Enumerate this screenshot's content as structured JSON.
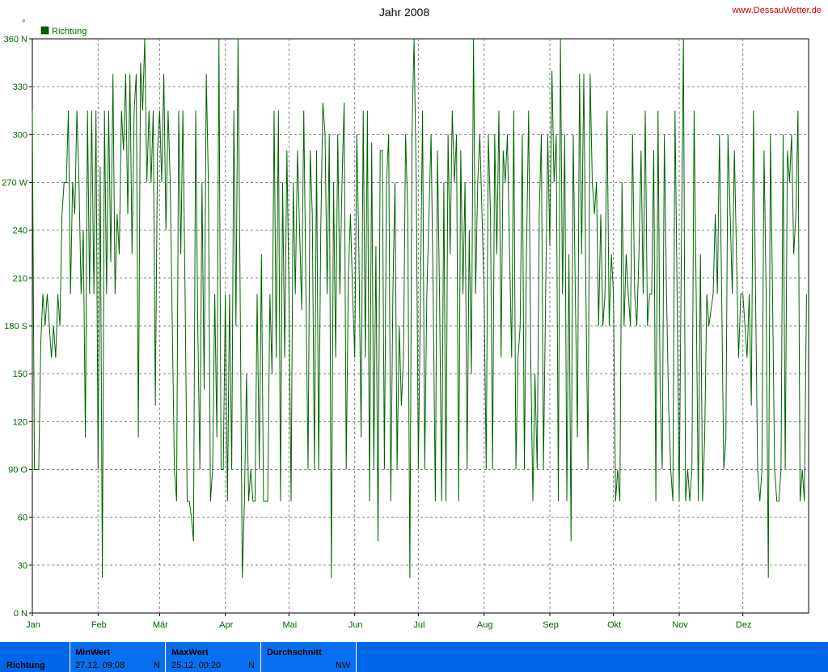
{
  "title": "Jahr 2008",
  "site": "www.DessauWetter.de",
  "unit_symbol": "°",
  "colors": {
    "series": "#006400",
    "grid": "#808080",
    "bar": "#0870f0",
    "site": "#d00000"
  },
  "chart_data": {
    "type": "line",
    "title": "Jahr 2008",
    "series": [
      {
        "name": "Richtung"
      }
    ],
    "ylim": [
      0,
      360
    ],
    "y_ticks": [
      {
        "v": 0,
        "label": "0   N"
      },
      {
        "v": 30,
        "label": "30"
      },
      {
        "v": 60,
        "label": "60"
      },
      {
        "v": 90,
        "label": "90   O"
      },
      {
        "v": 120,
        "label": "120"
      },
      {
        "v": 150,
        "label": "150"
      },
      {
        "v": 180,
        "label": "180 S"
      },
      {
        "v": 210,
        "label": "210"
      },
      {
        "v": 240,
        "label": "240"
      },
      {
        "v": 270,
        "label": "270 W"
      },
      {
        "v": 300,
        "label": "300"
      },
      {
        "v": 330,
        "label": "330"
      },
      {
        "v": 360,
        "label": "360 N"
      }
    ],
    "months": [
      "Jan",
      "Feb",
      "Mär",
      "Apr",
      "Mai",
      "Jun",
      "Jul",
      "Aug",
      "Sep",
      "Okt",
      "Nov",
      "Dez"
    ],
    "month_start_day": [
      0,
      31,
      60,
      91,
      121,
      152,
      182,
      213,
      244,
      274,
      305,
      335
    ],
    "days_in_year": 366,
    "grid": true,
    "legend": "top-left",
    "points": [
      [
        0,
        315
      ],
      [
        0.5,
        200
      ],
      [
        1,
        90
      ],
      [
        2,
        90
      ],
      [
        3,
        90
      ],
      [
        4,
        170
      ],
      [
        5,
        200
      ],
      [
        6,
        180
      ],
      [
        7,
        200
      ],
      [
        8,
        180
      ],
      [
        9,
        160
      ],
      [
        10,
        180
      ],
      [
        11,
        160
      ],
      [
        12,
        200
      ],
      [
        13,
        180
      ],
      [
        14,
        250
      ],
      [
        15,
        270
      ],
      [
        16,
        270
      ],
      [
        17,
        315
      ],
      [
        18,
        200
      ],
      [
        19,
        270
      ],
      [
        20,
        250
      ],
      [
        21,
        315
      ],
      [
        22,
        270
      ],
      [
        23,
        200
      ],
      [
        24,
        240
      ],
      [
        25,
        110
      ],
      [
        26,
        315
      ],
      [
        27,
        200
      ],
      [
        28,
        315
      ],
      [
        29,
        200
      ],
      [
        30,
        315
      ],
      [
        31,
        90
      ],
      [
        32,
        280
      ],
      [
        33,
        22
      ],
      [
        34,
        315
      ],
      [
        35,
        200
      ],
      [
        36,
        315
      ],
      [
        37,
        220
      ],
      [
        38,
        338
      ],
      [
        39,
        200
      ],
      [
        40,
        250
      ],
      [
        41,
        225
      ],
      [
        42,
        315
      ],
      [
        43,
        290
      ],
      [
        44,
        338
      ],
      [
        45,
        250
      ],
      [
        46,
        338
      ],
      [
        47,
        225
      ],
      [
        48,
        315
      ],
      [
        49,
        338
      ],
      [
        50,
        110
      ],
      [
        51,
        345
      ],
      [
        52,
        315
      ],
      [
        53,
        360
      ],
      [
        54,
        270
      ],
      [
        55,
        315
      ],
      [
        56,
        270
      ],
      [
        57,
        315
      ],
      [
        58,
        130
      ],
      [
        59,
        290
      ],
      [
        60,
        315
      ],
      [
        61,
        270
      ],
      [
        62,
        338
      ],
      [
        63,
        240
      ],
      [
        64,
        315
      ],
      [
        65,
        270
      ],
      [
        66,
        180
      ],
      [
        67,
        90
      ],
      [
        68,
        70
      ],
      [
        69,
        315
      ],
      [
        70,
        225
      ],
      [
        71,
        315
      ],
      [
        72,
        200
      ],
      [
        73,
        70
      ],
      [
        74,
        70
      ],
      [
        75,
        60
      ],
      [
        76,
        45
      ],
      [
        77,
        315
      ],
      [
        78,
        180
      ],
      [
        79,
        90
      ],
      [
        80,
        270
      ],
      [
        81,
        140
      ],
      [
        82,
        338
      ],
      [
        83,
        270
      ],
      [
        84,
        70
      ],
      [
        85,
        90
      ],
      [
        86,
        200
      ],
      [
        87,
        110
      ],
      [
        88,
        360
      ],
      [
        89,
        90
      ],
      [
        90,
        90
      ],
      [
        91,
        200
      ],
      [
        92,
        70
      ],
      [
        93,
        200
      ],
      [
        94,
        90
      ],
      [
        95,
        315
      ],
      [
        96,
        180
      ],
      [
        97,
        360
      ],
      [
        98,
        200
      ],
      [
        99,
        22
      ],
      [
        100,
        70
      ],
      [
        101,
        150
      ],
      [
        102,
        70
      ],
      [
        103,
        90
      ],
      [
        104,
        70
      ],
      [
        105,
        70
      ],
      [
        106,
        200
      ],
      [
        107,
        90
      ],
      [
        108,
        225
      ],
      [
        109,
        70
      ],
      [
        110,
        70
      ],
      [
        111,
        70
      ],
      [
        112,
        200
      ],
      [
        113,
        150
      ],
      [
        114,
        315
      ],
      [
        115,
        160
      ],
      [
        116,
        315
      ],
      [
        117,
        70
      ],
      [
        118,
        270
      ],
      [
        119,
        160
      ],
      [
        120,
        290
      ],
      [
        121,
        200
      ],
      [
        122,
        70
      ],
      [
        123,
        270
      ],
      [
        124,
        200
      ],
      [
        125,
        290
      ],
      [
        126,
        240
      ],
      [
        127,
        190
      ],
      [
        128,
        315
      ],
      [
        129,
        200
      ],
      [
        130,
        90
      ],
      [
        131,
        290
      ],
      [
        132,
        250
      ],
      [
        133,
        90
      ],
      [
        134,
        290
      ],
      [
        135,
        90
      ],
      [
        136,
        240
      ],
      [
        137,
        320
      ],
      [
        138,
        300
      ],
      [
        139,
        200
      ],
      [
        140,
        300
      ],
      [
        141,
        22
      ],
      [
        142,
        270
      ],
      [
        143,
        160
      ],
      [
        144,
        300
      ],
      [
        145,
        200
      ],
      [
        146,
        270
      ],
      [
        147,
        320
      ],
      [
        148,
        90
      ],
      [
        149,
        210
      ],
      [
        150,
        250
      ],
      [
        151,
        200
      ],
      [
        152,
        160
      ],
      [
        153,
        300
      ],
      [
        154,
        225
      ],
      [
        155,
        110
      ],
      [
        156,
        315
      ],
      [
        157,
        160
      ],
      [
        158,
        315
      ],
      [
        159,
        70
      ],
      [
        160,
        295
      ],
      [
        161,
        90
      ],
      [
        162,
        230
      ],
      [
        163,
        45
      ],
      [
        164,
        290
      ],
      [
        165,
        290
      ],
      [
        166,
        90
      ],
      [
        167,
        270
      ],
      [
        168,
        300
      ],
      [
        169,
        70
      ],
      [
        170,
        200
      ],
      [
        171,
        270
      ],
      [
        172,
        90
      ],
      [
        173,
        180
      ],
      [
        174,
        130
      ],
      [
        175,
        160
      ],
      [
        176,
        300
      ],
      [
        177,
        250
      ],
      [
        178,
        22
      ],
      [
        179,
        300
      ],
      [
        180,
        360
      ],
      [
        181,
        270
      ],
      [
        182,
        90
      ],
      [
        183,
        200
      ],
      [
        184,
        315
      ],
      [
        185,
        90
      ],
      [
        186,
        200
      ],
      [
        187,
        250
      ],
      [
        188,
        300
      ],
      [
        189,
        200
      ],
      [
        190,
        70
      ],
      [
        191,
        290
      ],
      [
        192,
        200
      ],
      [
        193,
        70
      ],
      [
        194,
        270
      ],
      [
        195,
        70
      ],
      [
        196,
        300
      ],
      [
        197,
        225
      ],
      [
        198,
        315
      ],
      [
        199,
        270
      ],
      [
        200,
        300
      ],
      [
        201,
        70
      ],
      [
        202,
        290
      ],
      [
        203,
        200
      ],
      [
        204,
        270
      ],
      [
        205,
        90
      ],
      [
        206,
        240
      ],
      [
        207,
        150
      ],
      [
        208,
        360
      ],
      [
        209,
        200
      ],
      [
        210,
        270
      ],
      [
        211,
        300
      ],
      [
        212,
        250
      ],
      [
        213,
        200
      ],
      [
        214,
        90
      ],
      [
        215,
        300
      ],
      [
        216,
        250
      ],
      [
        217,
        90
      ],
      [
        218,
        300
      ],
      [
        219,
        225
      ],
      [
        220,
        315
      ],
      [
        221,
        160
      ],
      [
        222,
        290
      ],
      [
        223,
        270
      ],
      [
        224,
        300
      ],
      [
        225,
        225
      ],
      [
        226,
        160
      ],
      [
        227,
        315
      ],
      [
        228,
        90
      ],
      [
        229,
        160
      ],
      [
        230,
        180
      ],
      [
        231,
        300
      ],
      [
        232,
        90
      ],
      [
        233,
        225
      ],
      [
        234,
        315
      ],
      [
        235,
        160
      ],
      [
        236,
        70
      ],
      [
        237,
        150
      ],
      [
        238,
        90
      ],
      [
        239,
        250
      ],
      [
        240,
        300
      ],
      [
        241,
        90
      ],
      [
        242,
        200
      ],
      [
        243,
        300
      ],
      [
        244,
        230
      ],
      [
        245,
        340
      ],
      [
        246,
        270
      ],
      [
        247,
        300
      ],
      [
        248,
        70
      ],
      [
        249,
        360
      ],
      [
        250,
        200
      ],
      [
        251,
        300
      ],
      [
        252,
        70
      ],
      [
        253,
        225
      ],
      [
        254,
        45
      ],
      [
        255,
        300
      ],
      [
        256,
        200
      ],
      [
        257,
        110
      ],
      [
        258,
        338
      ],
      [
        259,
        225
      ],
      [
        260,
        338
      ],
      [
        261,
        200
      ],
      [
        262,
        90
      ],
      [
        263,
        338
      ],
      [
        264,
        270
      ],
      [
        265,
        250
      ],
      [
        266,
        270
      ],
      [
        267,
        180
      ],
      [
        268,
        250
      ],
      [
        269,
        180
      ],
      [
        270,
        200
      ],
      [
        271,
        315
      ],
      [
        272,
        180
      ],
      [
        273,
        225
      ],
      [
        274,
        200
      ],
      [
        275,
        70
      ],
      [
        276,
        90
      ],
      [
        277,
        70
      ],
      [
        278,
        270
      ],
      [
        279,
        180
      ],
      [
        280,
        225
      ],
      [
        281,
        200
      ],
      [
        282,
        180
      ],
      [
        283,
        300
      ],
      [
        284,
        200
      ],
      [
        285,
        180
      ],
      [
        286,
        225
      ],
      [
        287,
        290
      ],
      [
        288,
        200
      ],
      [
        289,
        315
      ],
      [
        290,
        180
      ],
      [
        291,
        200
      ],
      [
        292,
        200
      ],
      [
        293,
        290
      ],
      [
        294,
        70
      ],
      [
        295,
        315
      ],
      [
        296,
        140
      ],
      [
        297,
        90
      ],
      [
        298,
        300
      ],
      [
        299,
        200
      ],
      [
        300,
        130
      ],
      [
        301,
        90
      ],
      [
        302,
        70
      ],
      [
        303,
        315
      ],
      [
        304,
        200
      ],
      [
        305,
        70
      ],
      [
        306,
        225
      ],
      [
        307,
        360
      ],
      [
        308,
        70
      ],
      [
        309,
        90
      ],
      [
        310,
        70
      ],
      [
        311,
        90
      ],
      [
        312,
        315
      ],
      [
        313,
        200
      ],
      [
        314,
        70
      ],
      [
        315,
        225
      ],
      [
        316,
        70
      ],
      [
        317,
        110
      ],
      [
        318,
        200
      ],
      [
        319,
        180
      ],
      [
        320,
        190
      ],
      [
        321,
        200
      ],
      [
        322,
        250
      ],
      [
        323,
        200
      ],
      [
        324,
        300
      ],
      [
        325,
        200
      ],
      [
        326,
        90
      ],
      [
        327,
        110
      ],
      [
        328,
        300
      ],
      [
        329,
        250
      ],
      [
        330,
        200
      ],
      [
        331,
        290
      ],
      [
        332,
        225
      ],
      [
        333,
        160
      ],
      [
        334,
        200
      ],
      [
        335,
        200
      ],
      [
        336,
        180
      ],
      [
        337,
        160
      ],
      [
        338,
        200
      ],
      [
        339,
        130
      ],
      [
        340,
        315
      ],
      [
        341,
        200
      ],
      [
        342,
        90
      ],
      [
        343,
        70
      ],
      [
        344,
        90
      ],
      [
        345,
        290
      ],
      [
        346,
        200
      ],
      [
        347,
        22
      ],
      [
        348,
        300
      ],
      [
        349,
        200
      ],
      [
        350,
        90
      ],
      [
        351,
        70
      ],
      [
        352,
        70
      ],
      [
        353,
        90
      ],
      [
        354,
        300
      ],
      [
        355,
        90
      ],
      [
        356,
        290
      ],
      [
        357,
        270
      ],
      [
        358,
        300
      ],
      [
        359,
        225
      ],
      [
        360,
        250
      ],
      [
        361,
        315
      ],
      [
        362,
        70
      ],
      [
        363,
        90
      ],
      [
        364,
        70
      ],
      [
        365,
        200
      ]
    ]
  },
  "stats": {
    "row_label": "Richtung",
    "min_label": "MinWert",
    "min_value": "27.12.  09:08",
    "min_dir": "N",
    "max_label": "MaxWert",
    "max_value": "25.12.  00:20",
    "max_dir": "N",
    "avg_label": "Durchschnitt",
    "avg_dir": "NW"
  }
}
